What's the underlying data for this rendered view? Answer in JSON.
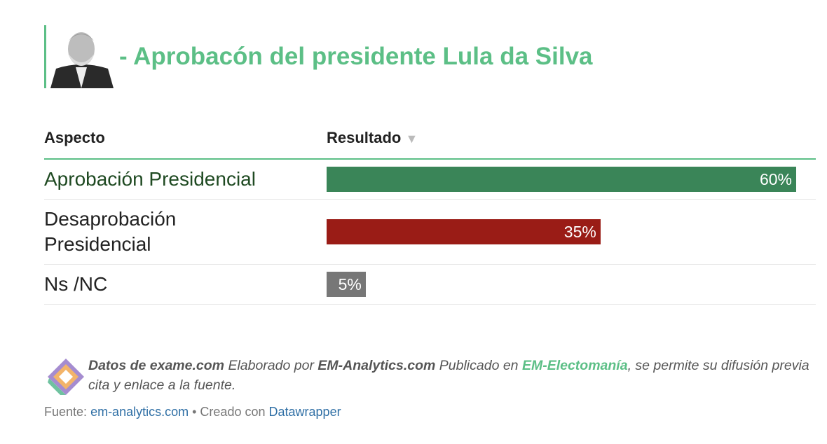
{
  "chart_data": {
    "type": "bar",
    "title": "- Aprobacón del presidente Lula da Silva",
    "column_headers": [
      "Aspecto",
      "Resultado"
    ],
    "categories": [
      "Aprobación Presidencial",
      "Desaprobación Presidencial",
      "Ns /NC"
    ],
    "values": [
      60,
      35,
      5
    ],
    "value_labels": [
      "60%",
      "35%",
      "5%"
    ],
    "colors": [
      "#3a8558",
      "#9a1c16",
      "#777777"
    ],
    "xlim": [
      0,
      60
    ]
  },
  "notes": [
    "Datos de exame.com",
    "Elaborado por",
    "EM-Analytics.com",
    "Publicado en",
    "EM-Electomanía",
    ", se permite su difusión previa cita y enlace a la fuente."
  ],
  "source": [
    "Fuente:",
    "em-analytics.com",
    "• Creado con",
    "Datawrapper"
  ]
}
